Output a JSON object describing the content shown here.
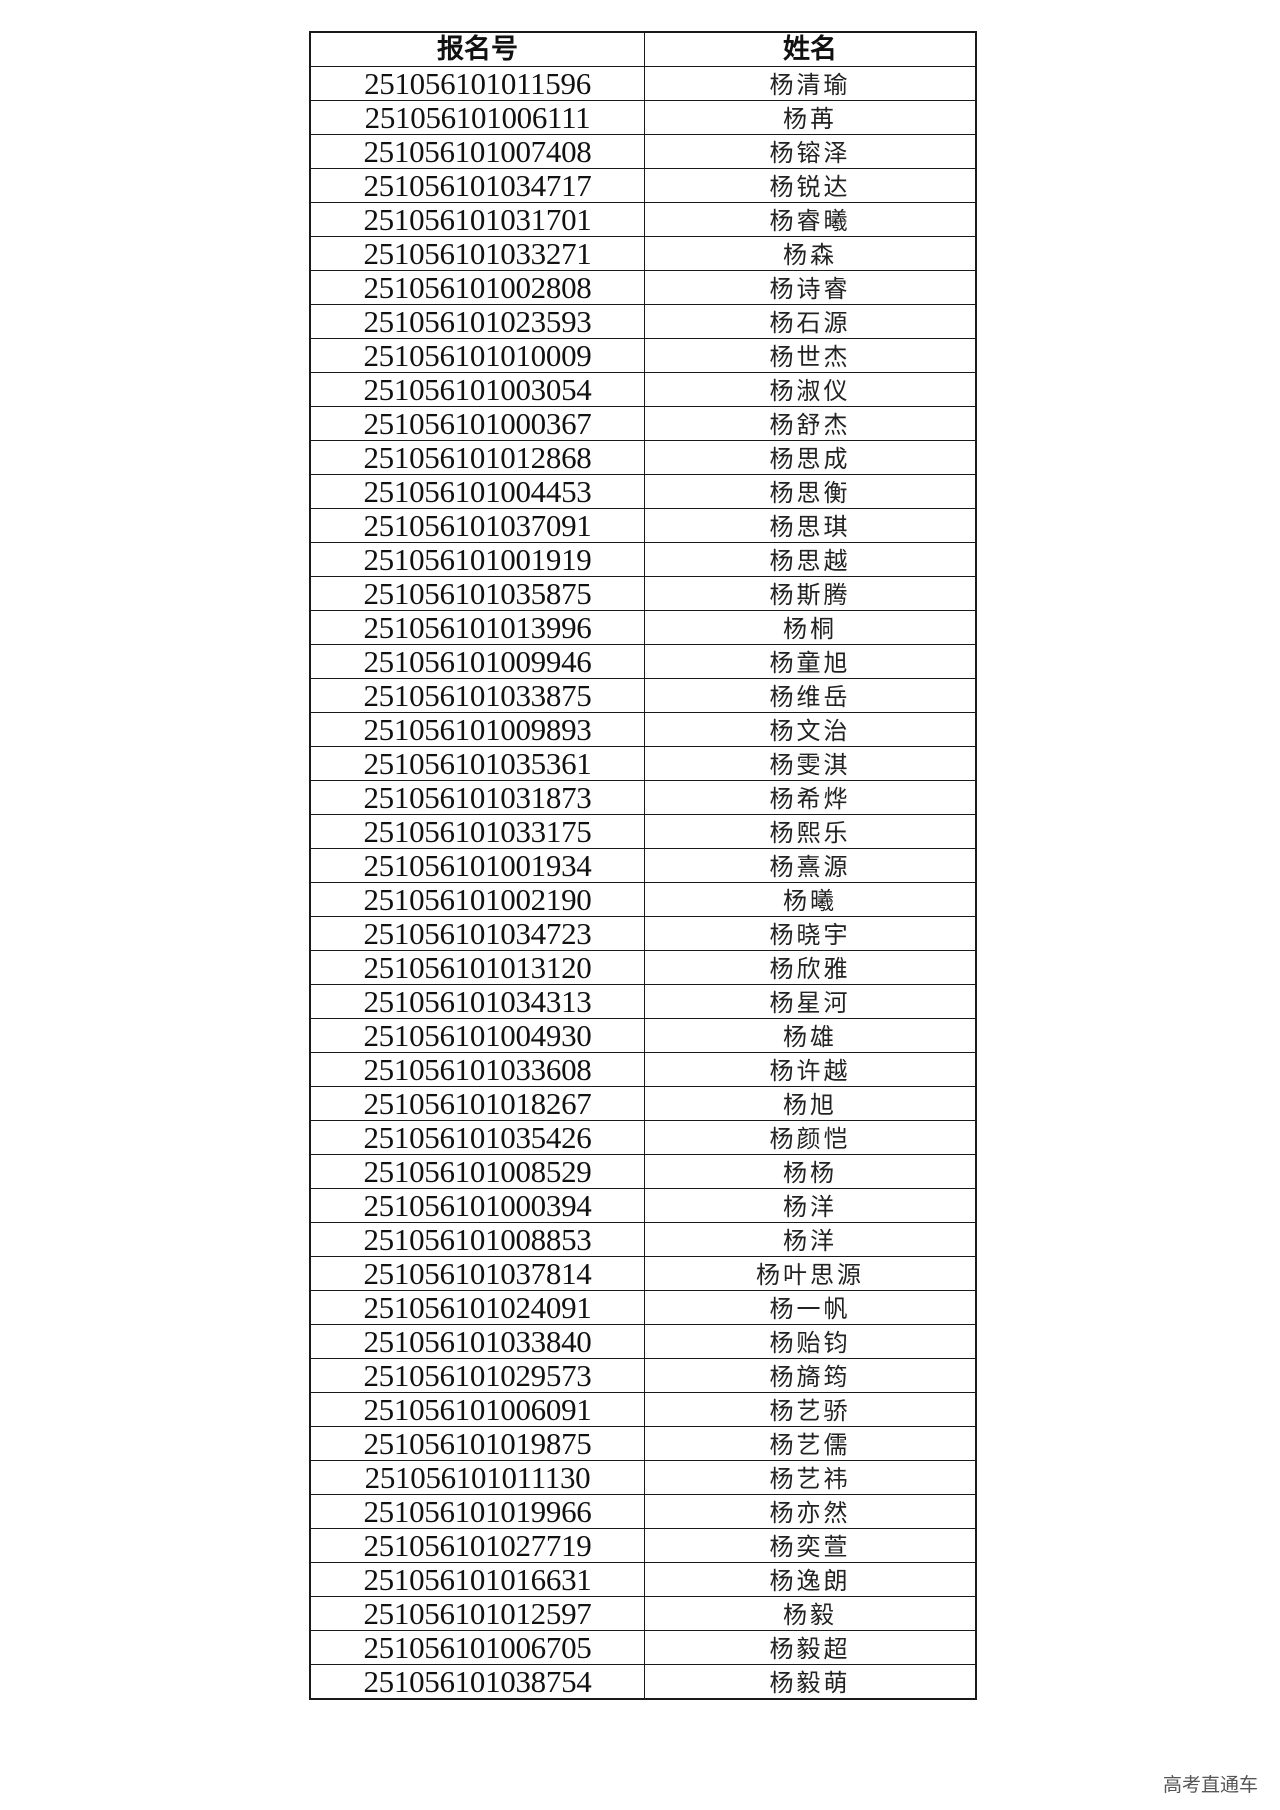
{
  "table": {
    "headers": [
      "报名号",
      "姓名"
    ],
    "rows": [
      [
        "251056101011596",
        "杨清瑜"
      ],
      [
        "251056101006111",
        "杨苒"
      ],
      [
        "251056101007408",
        "杨镕泽"
      ],
      [
        "251056101034717",
        "杨锐达"
      ],
      [
        "251056101031701",
        "杨睿曦"
      ],
      [
        "251056101033271",
        "杨森"
      ],
      [
        "251056101002808",
        "杨诗睿"
      ],
      [
        "251056101023593",
        "杨石源"
      ],
      [
        "251056101010009",
        "杨世杰"
      ],
      [
        "251056101003054",
        "杨淑仪"
      ],
      [
        "251056101000367",
        "杨舒杰"
      ],
      [
        "251056101012868",
        "杨思成"
      ],
      [
        "251056101004453",
        "杨思衡"
      ],
      [
        "251056101037091",
        "杨思琪"
      ],
      [
        "251056101001919",
        "杨思越"
      ],
      [
        "251056101035875",
        "杨斯腾"
      ],
      [
        "251056101013996",
        "杨桐"
      ],
      [
        "251056101009946",
        "杨童旭"
      ],
      [
        "251056101033875",
        "杨维岳"
      ],
      [
        "251056101009893",
        "杨文治"
      ],
      [
        "251056101035361",
        "杨雯淇"
      ],
      [
        "251056101031873",
        "杨希烨"
      ],
      [
        "251056101033175",
        "杨熙乐"
      ],
      [
        "251056101001934",
        "杨熹源"
      ],
      [
        "251056101002190",
        "杨曦"
      ],
      [
        "251056101034723",
        "杨晓宇"
      ],
      [
        "251056101013120",
        "杨欣雅"
      ],
      [
        "251056101034313",
        "杨星河"
      ],
      [
        "251056101004930",
        "杨雄"
      ],
      [
        "251056101033608",
        "杨许越"
      ],
      [
        "251056101018267",
        "杨旭"
      ],
      [
        "251056101035426",
        "杨颜恺"
      ],
      [
        "251056101008529",
        "杨杨"
      ],
      [
        "251056101000394",
        "杨洋"
      ],
      [
        "251056101008853",
        "杨洋"
      ],
      [
        "251056101037814",
        "杨叶思源"
      ],
      [
        "251056101024091",
        "杨一帆"
      ],
      [
        "251056101033840",
        "杨贻钧"
      ],
      [
        "251056101029573",
        "杨旖筠"
      ],
      [
        "251056101006091",
        "杨艺骄"
      ],
      [
        "251056101019875",
        "杨艺儒"
      ],
      [
        "251056101011130",
        "杨艺祎"
      ],
      [
        "251056101019966",
        "杨亦然"
      ],
      [
        "251056101027719",
        "杨奕萱"
      ],
      [
        "251056101016631",
        "杨逸朗"
      ],
      [
        "251056101012597",
        "杨毅"
      ],
      [
        "251056101006705",
        "杨毅超"
      ],
      [
        "251056101038754",
        "杨毅萌"
      ]
    ]
  },
  "watermark": "高考直通车"
}
